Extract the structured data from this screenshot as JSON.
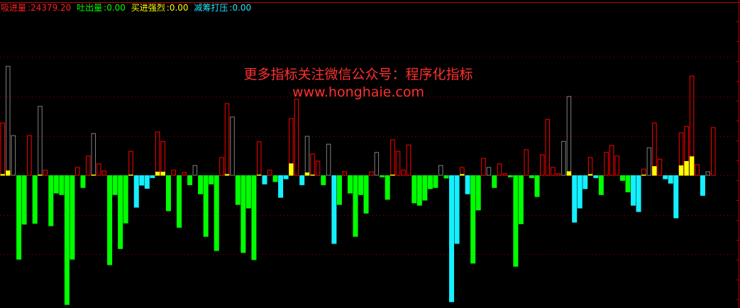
{
  "legend": [
    {
      "label": "吸进量",
      "value": "24379.20",
      "color": "#ff2020"
    },
    {
      "label": "吐出量",
      "value": "0.00",
      "color": "#00ff00"
    },
    {
      "label": "买进强烈",
      "value": "0.00",
      "color": "#ffff00"
    },
    {
      "label": "减筹打压",
      "value": "0.00",
      "color": "#20e8ff"
    }
  ],
  "watermark": {
    "line1": "更多指标关注微信公众号：程序化指标",
    "line2": "www.honghaie.com"
  },
  "chart_data": {
    "type": "bar",
    "grid": true,
    "gridlines": [
      -200,
      -100,
      100,
      200,
      300
    ],
    "colors": {
      "up": "#ff0000",
      "up_alt": "#808080",
      "strong": "#ffff00",
      "down": "#00ff00",
      "down_alt": "#14f0ff",
      "grid": "#8b0000"
    },
    "values": [
      133,
      277,
      101,
      -214,
      -125,
      101,
      -123,
      175,
      13,
      -129,
      -46,
      -50,
      -329,
      -214,
      20,
      -32,
      49,
      106,
      29,
      11,
      -228,
      -50,
      -187,
      -122,
      61,
      -82,
      -26,
      -34,
      -7,
      110,
      86,
      -91,
      13,
      -133,
      7,
      -25,
      25,
      -48,
      -156,
      -23,
      -192,
      45,
      182,
      148,
      -75,
      -197,
      -84,
      -215,
      85,
      -23,
      13,
      -17,
      -57,
      -10,
      144,
      193,
      -25,
      99,
      54,
      36,
      -25,
      79,
      -174,
      -75,
      9,
      -46,
      -156,
      -50,
      -97,
      9,
      58,
      -5,
      -62,
      90,
      61,
      13,
      77,
      -71,
      -77,
      -64,
      -35,
      -32,
      25,
      -8,
      -322,
      -174,
      20,
      -48,
      -224,
      -89,
      43,
      20,
      -32,
      29,
      4,
      -5,
      -232,
      -124,
      65,
      -7,
      -55,
      52,
      142,
      20,
      4,
      86,
      200,
      -120,
      -84,
      -35,
      45,
      -7,
      -50,
      58,
      76,
      49,
      -14,
      -43,
      -77,
      -93,
      16,
      70,
      133,
      41,
      -10,
      -21,
      -109,
      108,
      124,
      252,
      27,
      -52,
      9,
      121
    ],
    "strong_values": {
      "1": 4,
      "2": 13,
      "8": 2,
      "18": 1,
      "25": 2,
      "30": 10,
      "31": 10,
      "43": 4,
      "49": 2,
      "55": 31,
      "58": 8,
      "59": 2,
      "74": 1,
      "87": 4,
      "107": 11,
      "111": 4,
      "121": 2,
      "123": 24,
      "128": 26,
      "129": 37,
      "130": 49
    },
    "up_alt_bars": [
      2,
      3,
      8,
      18,
      37,
      44,
      58,
      62,
      71,
      83,
      92,
      106,
      107,
      122,
      133
    ],
    "down_alt_bars": [
      26,
      27,
      28,
      29,
      50,
      53,
      54,
      57,
      63,
      85,
      86,
      88,
      108,
      109,
      110,
      112,
      119,
      120,
      125,
      126,
      127,
      132
    ]
  }
}
